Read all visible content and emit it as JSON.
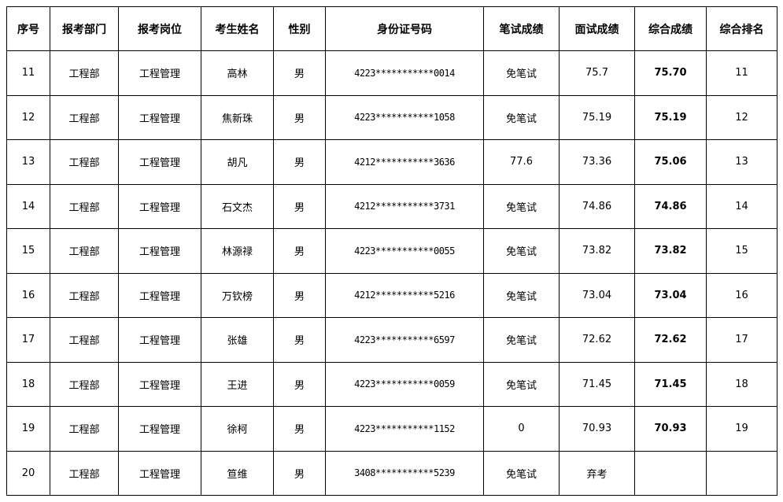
{
  "headers": [
    "序号",
    "报考部门",
    "报考岗位",
    "考生姓名",
    "性别",
    "身份证号码",
    "笔试成绩",
    "面试成绩",
    "综合成绩",
    "综合排名"
  ],
  "rows": [
    [
      "11",
      "工程部",
      "工程管理",
      "高林",
      "男",
      "4223***********0014",
      "免笔试",
      "75.7",
      "75.70",
      "11"
    ],
    [
      "12",
      "工程部",
      "工程管理",
      "焦新珠",
      "男",
      "4223***********1058",
      "免笔试",
      "75.19",
      "75.19",
      "12"
    ],
    [
      "13",
      "工程部",
      "工程管理",
      "胡凡",
      "男",
      "4212***********3636",
      "77.6",
      "73.36",
      "75.06",
      "13"
    ],
    [
      "14",
      "工程部",
      "工程管理",
      "石文杰",
      "男",
      "4212***********3731",
      "免笔试",
      "74.86",
      "74.86",
      "14"
    ],
    [
      "15",
      "工程部",
      "工程管理",
      "林源禄",
      "男",
      "4223***********0055",
      "免笔试",
      "73.82",
      "73.82",
      "15"
    ],
    [
      "16",
      "工程部",
      "工程管理",
      "万钦榜",
      "男",
      "4212***********5216",
      "免笔试",
      "73.04",
      "73.04",
      "16"
    ],
    [
      "17",
      "工程部",
      "工程管理",
      "张雄",
      "男",
      "4223***********6597",
      "免笔试",
      "72.62",
      "72.62",
      "17"
    ],
    [
      "18",
      "工程部",
      "工程管理",
      "王进",
      "男",
      "4223***********0059",
      "免笔试",
      "71.45",
      "71.45",
      "18"
    ],
    [
      "19",
      "工程部",
      "工程管理",
      "徐柯",
      "男",
      "4223***********1152",
      "0",
      "70.93",
      "70.93",
      "19"
    ],
    [
      "20",
      "工程部",
      "工程管理",
      "笪维",
      "男",
      "3408***********5239",
      "免笔试",
      "弃考",
      "",
      ""
    ]
  ]
}
